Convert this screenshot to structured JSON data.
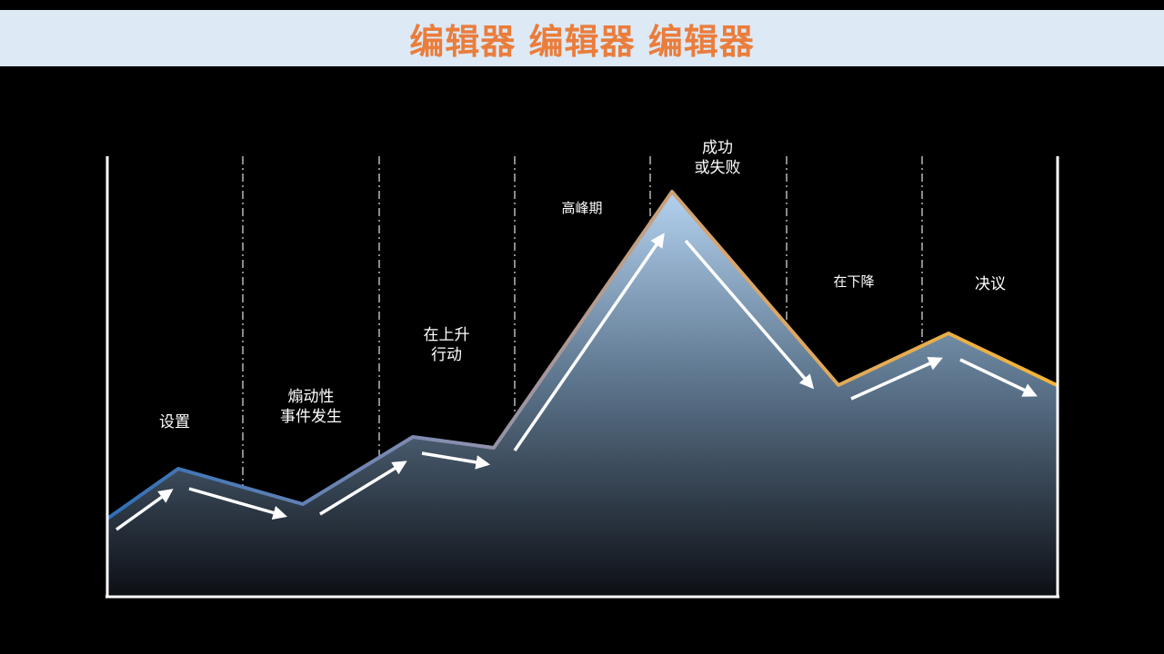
{
  "title": "编辑器 编辑器 编辑器",
  "colors": {
    "title_text": "#ea7d3c",
    "banner_bg": "#dde9f5",
    "line_start": "#2f6fb8",
    "line_end": "#f3b435",
    "arrow": "#ffffff",
    "axis": "#ffffff"
  },
  "stages": [
    {
      "lines": [
        "设置"
      ]
    },
    {
      "lines": [
        "煽动性",
        "事件发生"
      ]
    },
    {
      "lines": [
        "在上升",
        "行动"
      ]
    },
    {
      "lines": [
        "高峰期"
      ]
    },
    {
      "lines": [
        "成功",
        "或失败"
      ]
    },
    {
      "lines": [
        "在下降"
      ]
    },
    {
      "lines": [
        "决议"
      ]
    }
  ]
}
